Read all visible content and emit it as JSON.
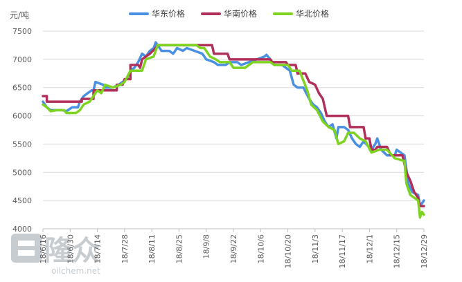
{
  "chart_data": {
    "type": "line",
    "unit_label": "元/吨",
    "ylim": [
      4000,
      7500
    ],
    "yticks": [
      4000,
      4500,
      5000,
      5500,
      6000,
      6500,
      7000,
      7500
    ],
    "grid": true,
    "legend_position": "top",
    "x_tick_labels": [
      "18/6/16",
      "18/6/30",
      "18/7/14",
      "18/7/28",
      "18/8/11",
      "18/8/25",
      "18/9/8",
      "18/9/22",
      "18/10/6",
      "18/10/20",
      "18/11/3",
      "18/11/17",
      "18/12/1",
      "18/12/15",
      "18/12/29"
    ],
    "x_start": "2018-06-16",
    "x_end": "2018-12-29",
    "series": [
      {
        "name": "华东价格",
        "color": "#4a90e2",
        "points": [
          [
            "2018-06-16",
            6250
          ],
          [
            "2018-06-18",
            6150
          ],
          [
            "2018-06-20",
            6100
          ],
          [
            "2018-06-26",
            6100
          ],
          [
            "2018-06-28",
            6080
          ],
          [
            "2018-07-01",
            6150
          ],
          [
            "2018-07-04",
            6150
          ],
          [
            "2018-07-05",
            6250
          ],
          [
            "2018-07-07",
            6350
          ],
          [
            "2018-07-09",
            6400
          ],
          [
            "2018-07-11",
            6450
          ],
          [
            "2018-07-12",
            6450
          ],
          [
            "2018-07-13",
            6600
          ],
          [
            "2018-07-17",
            6550
          ],
          [
            "2018-07-18",
            6500
          ],
          [
            "2018-07-22",
            6500
          ],
          [
            "2018-07-25",
            6550
          ],
          [
            "2018-07-27",
            6600
          ],
          [
            "2018-07-29",
            6650
          ],
          [
            "2018-07-31",
            6800
          ],
          [
            "2018-08-02",
            6850
          ],
          [
            "2018-08-04",
            6950
          ],
          [
            "2018-08-06",
            7100
          ],
          [
            "2018-08-08",
            7050
          ],
          [
            "2018-08-10",
            7150
          ],
          [
            "2018-08-12",
            7200
          ],
          [
            "2018-08-13",
            7300
          ],
          [
            "2018-08-14",
            7250
          ],
          [
            "2018-08-16",
            7150
          ],
          [
            "2018-08-20",
            7150
          ],
          [
            "2018-08-22",
            7100
          ],
          [
            "2018-08-24",
            7200
          ],
          [
            "2018-08-27",
            7150
          ],
          [
            "2018-08-29",
            7200
          ],
          [
            "2018-09-02",
            7150
          ],
          [
            "2018-09-06",
            7100
          ],
          [
            "2018-09-08",
            7000
          ],
          [
            "2018-09-12",
            6950
          ],
          [
            "2018-09-14",
            6900
          ],
          [
            "2018-09-18",
            6900
          ],
          [
            "2018-09-20",
            6950
          ],
          [
            "2018-09-24",
            6950
          ],
          [
            "2018-09-26",
            6900
          ],
          [
            "2018-09-30",
            6950
          ],
          [
            "2018-10-04",
            7000
          ],
          [
            "2018-10-08",
            7050
          ],
          [
            "2018-10-09",
            7080
          ],
          [
            "2018-10-11",
            7000
          ],
          [
            "2018-10-13",
            6900
          ],
          [
            "2018-10-17",
            6900
          ],
          [
            "2018-10-19",
            6850
          ],
          [
            "2018-10-21",
            6800
          ],
          [
            "2018-10-23",
            6550
          ],
          [
            "2018-10-25",
            6500
          ],
          [
            "2018-10-28",
            6500
          ],
          [
            "2018-10-31",
            6300
          ],
          [
            "2018-11-02",
            6200
          ],
          [
            "2018-11-04",
            6150
          ],
          [
            "2018-11-06",
            6050
          ],
          [
            "2018-11-08",
            5900
          ],
          [
            "2018-11-10",
            5800
          ],
          [
            "2018-11-12",
            5850
          ],
          [
            "2018-11-14",
            5600
          ],
          [
            "2018-11-15",
            5800
          ],
          [
            "2018-11-18",
            5800
          ],
          [
            "2018-11-20",
            5750
          ],
          [
            "2018-11-22",
            5600
          ],
          [
            "2018-11-24",
            5500
          ],
          [
            "2018-11-26",
            5450
          ],
          [
            "2018-11-28",
            5550
          ],
          [
            "2018-12-02",
            5400
          ],
          [
            "2018-12-04",
            5500
          ],
          [
            "2018-12-05",
            5600
          ],
          [
            "2018-12-07",
            5400
          ],
          [
            "2018-12-10",
            5300
          ],
          [
            "2018-12-14",
            5300
          ],
          [
            "2018-12-15",
            5400
          ],
          [
            "2018-12-17",
            5350
          ],
          [
            "2018-12-19",
            5300
          ],
          [
            "2018-12-21",
            4800
          ],
          [
            "2018-12-23",
            4650
          ],
          [
            "2018-12-26",
            4600
          ],
          [
            "2018-12-27",
            4400
          ],
          [
            "2018-12-29",
            4500
          ]
        ]
      },
      {
        "name": "华南价格",
        "color": "#b0305a",
        "points": [
          [
            "2018-06-16",
            6350
          ],
          [
            "2018-06-18",
            6350
          ],
          [
            "2018-06-18",
            6250
          ],
          [
            "2018-07-06",
            6250
          ],
          [
            "2018-07-06",
            6300
          ],
          [
            "2018-07-12",
            6300
          ],
          [
            "2018-07-12",
            6450
          ],
          [
            "2018-07-16",
            6450
          ],
          [
            "2018-07-16",
            6450
          ],
          [
            "2018-07-24",
            6450
          ],
          [
            "2018-07-24",
            6550
          ],
          [
            "2018-07-27",
            6550
          ],
          [
            "2018-07-28",
            6650
          ],
          [
            "2018-07-31",
            6650
          ],
          [
            "2018-07-31",
            6900
          ],
          [
            "2018-08-04",
            6900
          ],
          [
            "2018-08-05",
            6850
          ],
          [
            "2018-08-06",
            7000
          ],
          [
            "2018-08-10",
            7100
          ],
          [
            "2018-08-13",
            7200
          ],
          [
            "2018-08-14",
            7250
          ],
          [
            "2018-09-11",
            7250
          ],
          [
            "2018-09-12",
            7100
          ],
          [
            "2018-09-19",
            7100
          ],
          [
            "2018-09-20",
            7000
          ],
          [
            "2018-10-11",
            7000
          ],
          [
            "2018-10-12",
            6950
          ],
          [
            "2018-10-19",
            6950
          ],
          [
            "2018-10-20",
            6900
          ],
          [
            "2018-10-24",
            6900
          ],
          [
            "2018-10-25",
            6750
          ],
          [
            "2018-10-29",
            6750
          ],
          [
            "2018-10-31",
            6600
          ],
          [
            "2018-11-03",
            6550
          ],
          [
            "2018-11-05",
            6400
          ],
          [
            "2018-11-07",
            6300
          ],
          [
            "2018-11-09",
            6000
          ],
          [
            "2018-11-20",
            6000
          ],
          [
            "2018-11-21",
            5800
          ],
          [
            "2018-11-28",
            5800
          ],
          [
            "2018-11-29",
            5600
          ],
          [
            "2018-12-01",
            5600
          ],
          [
            "2018-12-02",
            5400
          ],
          [
            "2018-12-04",
            5400
          ],
          [
            "2018-12-05",
            5450
          ],
          [
            "2018-12-10",
            5450
          ],
          [
            "2018-12-12",
            5300
          ],
          [
            "2018-12-18",
            5300
          ],
          [
            "2018-12-20",
            5000
          ],
          [
            "2018-12-22",
            4850
          ],
          [
            "2018-12-24",
            4650
          ],
          [
            "2018-12-26",
            4550
          ],
          [
            "2018-12-27",
            4400
          ],
          [
            "2018-12-29",
            4400
          ]
        ]
      },
      {
        "name": "华北价格",
        "color": "#7ed321",
        "points": [
          [
            "2018-06-16",
            6200
          ],
          [
            "2018-06-18",
            6150
          ],
          [
            "2018-06-20",
            6080
          ],
          [
            "2018-06-23",
            6100
          ],
          [
            "2018-06-27",
            6100
          ],
          [
            "2018-06-28",
            6050
          ],
          [
            "2018-07-03",
            6050
          ],
          [
            "2018-07-05",
            6100
          ],
          [
            "2018-07-07",
            6200
          ],
          [
            "2018-07-10",
            6250
          ],
          [
            "2018-07-12",
            6350
          ],
          [
            "2018-07-14",
            6450
          ],
          [
            "2018-07-16",
            6400
          ],
          [
            "2018-07-18",
            6550
          ],
          [
            "2018-07-22",
            6500
          ],
          [
            "2018-07-26",
            6550
          ],
          [
            "2018-07-28",
            6600
          ],
          [
            "2018-07-31",
            6800
          ],
          [
            "2018-08-05",
            6800
          ],
          [
            "2018-08-06",
            6800
          ],
          [
            "2018-08-08",
            7000
          ],
          [
            "2018-08-12",
            7050
          ],
          [
            "2018-08-14",
            7250
          ],
          [
            "2018-09-03",
            7250
          ],
          [
            "2018-09-05",
            7200
          ],
          [
            "2018-09-07",
            7200
          ],
          [
            "2018-09-10",
            7050
          ],
          [
            "2018-09-13",
            7000
          ],
          [
            "2018-09-15",
            6950
          ],
          [
            "2018-09-20",
            6950
          ],
          [
            "2018-09-22",
            6850
          ],
          [
            "2018-09-28",
            6850
          ],
          [
            "2018-10-02",
            6950
          ],
          [
            "2018-10-11",
            6950
          ],
          [
            "2018-10-13",
            6900
          ],
          [
            "2018-10-20",
            6900
          ],
          [
            "2018-10-22",
            6800
          ],
          [
            "2018-10-26",
            6800
          ],
          [
            "2018-10-30",
            6450
          ],
          [
            "2018-11-01",
            6200
          ],
          [
            "2018-11-04",
            6100
          ],
          [
            "2018-11-07",
            5900
          ],
          [
            "2018-11-10",
            5800
          ],
          [
            "2018-11-13",
            5750
          ],
          [
            "2018-11-15",
            5500
          ],
          [
            "2018-11-18",
            5550
          ],
          [
            "2018-11-20",
            5700
          ],
          [
            "2018-11-23",
            5700
          ],
          [
            "2018-11-26",
            5600
          ],
          [
            "2018-11-29",
            5550
          ],
          [
            "2018-12-02",
            5350
          ],
          [
            "2018-12-06",
            5400
          ],
          [
            "2018-12-10",
            5400
          ],
          [
            "2018-12-14",
            5250
          ],
          [
            "2018-12-19",
            5200
          ],
          [
            "2018-12-20",
            4800
          ],
          [
            "2018-12-22",
            4600
          ],
          [
            "2018-12-26",
            4500
          ],
          [
            "2018-12-27",
            4200
          ],
          [
            "2018-12-28",
            4300
          ],
          [
            "2018-12-29",
            4250
          ]
        ]
      }
    ]
  },
  "watermark": {
    "main": "隆众",
    "sub": "oilchem.net"
  }
}
